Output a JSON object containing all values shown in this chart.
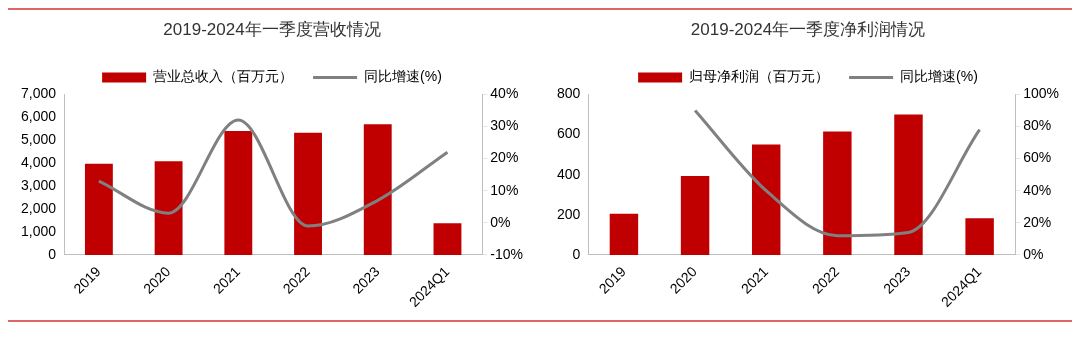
{
  "chart_data": [
    {
      "type": "bar",
      "title": "2019-2024年一季度营收情况",
      "categories": [
        "2019",
        "2020",
        "2021",
        "2022",
        "2023",
        "2024Q1"
      ],
      "series": [
        {
          "name": "营业总收入（百万元）",
          "color": "#c00000",
          "values": [
            3980,
            4080,
            5400,
            5330,
            5700,
            1380
          ]
        },
        {
          "name": "同比增速(%)",
          "type": "line",
          "axis": "y2",
          "color": "#808080",
          "values": [
            13,
            3,
            32,
            -1,
            7,
            22
          ]
        }
      ],
      "ylim": [
        0,
        7000
      ],
      "yticks": [
        {
          "value": 0,
          "label": "0"
        },
        {
          "value": 1000,
          "label": "1,000"
        },
        {
          "value": 2000,
          "label": "2,000"
        },
        {
          "value": 3000,
          "label": "3,000"
        },
        {
          "value": 4000,
          "label": "4,000"
        },
        {
          "value": 5000,
          "label": "5,000"
        },
        {
          "value": 6000,
          "label": "6,000"
        },
        {
          "value": 7000,
          "label": "7,000"
        }
      ],
      "y2lim": [
        -10,
        40
      ],
      "y2ticks": [
        {
          "value": -10,
          "label": "-10%"
        },
        {
          "value": 0,
          "label": "0%"
        },
        {
          "value": 10,
          "label": "10%"
        },
        {
          "value": 20,
          "label": "20%"
        },
        {
          "value": 30,
          "label": "30%"
        },
        {
          "value": 40,
          "label": "40%"
        }
      ],
      "legend": "top",
      "marker": "none"
    },
    {
      "type": "bar",
      "title": "2019-2024年一季度净利润情况",
      "categories": [
        "2019",
        "2020",
        "2021",
        "2022",
        "2023",
        "2024Q1"
      ],
      "series": [
        {
          "name": "归母净利润（百万元）",
          "color": "#c00000",
          "values": [
            205,
            393,
            550,
            615,
            700,
            183
          ]
        },
        {
          "name": "同比增速(%)",
          "type": "line",
          "axis": "y2",
          "color": "#808080",
          "values": [
            null,
            90,
            40,
            12,
            14,
            78
          ]
        }
      ],
      "ylim": [
        0,
        800
      ],
      "yticks": [
        0,
        200,
        400,
        600,
        800
      ],
      "y2lim": [
        0,
        100
      ],
      "y2ticks": [
        {
          "value": 0,
          "label": "0%"
        },
        {
          "value": 20,
          "label": "20%"
        },
        {
          "value": 40,
          "label": "40%"
        },
        {
          "value": 60,
          "label": "60%"
        },
        {
          "value": 80,
          "label": "80%"
        },
        {
          "value": 100,
          "label": "100%"
        }
      ],
      "legend": "top",
      "marker": "none"
    }
  ]
}
